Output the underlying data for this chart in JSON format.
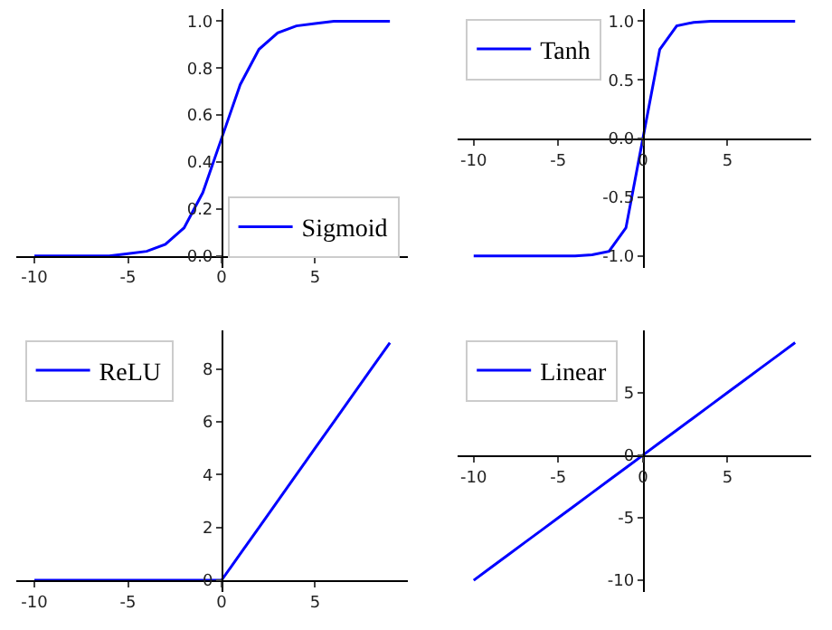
{
  "chart_data": [
    {
      "type": "line",
      "x": [
        -10,
        -9,
        -8,
        -7,
        -6,
        -5,
        -4,
        -3,
        -2,
        -1,
        0,
        1,
        2,
        3,
        4,
        5,
        6,
        7,
        8,
        9
      ],
      "xlim": [
        -10.95,
        9.95
      ],
      "ylim": [
        -0.05,
        1.05
      ],
      "xticks": [
        -10,
        -5,
        0,
        5
      ],
      "yticks": [
        {
          "value": 0,
          "label": "0.0"
        },
        0.2,
        0.4,
        0.6,
        0.8,
        {
          "value": 1,
          "label": "1.0"
        }
      ],
      "legend": "bottom right",
      "series": [
        {
          "name": "Sigmoid",
          "color": "#0000ff",
          "values": [
            0.0,
            0.0,
            0.0,
            0.0,
            0.0,
            0.01,
            0.02,
            0.05,
            0.12,
            0.27,
            0.5,
            0.73,
            0.88,
            0.95,
            0.98,
            0.99,
            1.0,
            1.0,
            1.0,
            1.0
          ]
        }
      ]
    },
    {
      "type": "line",
      "x": [
        -10,
        -9,
        -8,
        -7,
        -6,
        -5,
        -4,
        -3,
        -2,
        -1,
        0,
        1,
        2,
        3,
        4,
        5,
        6,
        7,
        8,
        9
      ],
      "xlim": [
        -10.95,
        9.95
      ],
      "ylim": [
        -1.1,
        1.1
      ],
      "xticks": [
        -10,
        -5,
        0,
        5
      ],
      "yticks": [
        {
          "value": -1,
          "label": "-1.0"
        },
        -0.5,
        {
          "value": 0,
          "label": "0.0"
        },
        0.5,
        {
          "value": 1,
          "label": "1.0"
        }
      ],
      "legend": "top left",
      "series": [
        {
          "name": "Tanh",
          "color": "#0000ff",
          "values": [
            -1.0,
            -1.0,
            -1.0,
            -1.0,
            -1.0,
            -1.0,
            -1.0,
            -0.99,
            -0.96,
            -0.76,
            0.0,
            0.76,
            0.96,
            0.99,
            1.0,
            1.0,
            1.0,
            1.0,
            1.0,
            1.0
          ]
        }
      ]
    },
    {
      "type": "line",
      "x": [
        -10,
        -9,
        -8,
        -7,
        -6,
        -5,
        -4,
        -3,
        -2,
        -1,
        0,
        1,
        2,
        3,
        4,
        5,
        6,
        7,
        8,
        9
      ],
      "xlim": [
        -10.95,
        9.95
      ],
      "ylim": [
        -0.45,
        9.45
      ],
      "xticks": [
        -10,
        -5,
        0,
        5
      ],
      "yticks": [
        0,
        2,
        4,
        6,
        8
      ],
      "legend": "top left",
      "series": [
        {
          "name": "ReLU",
          "color": "#0000ff",
          "values": [
            0,
            0,
            0,
            0,
            0,
            0,
            0,
            0,
            0,
            0,
            0,
            1,
            2,
            3,
            4,
            5,
            6,
            7,
            8,
            9
          ]
        }
      ]
    },
    {
      "type": "line",
      "x": [
        -10,
        -9,
        -8,
        -7,
        -6,
        -5,
        -4,
        -3,
        -2,
        -1,
        0,
        1,
        2,
        3,
        4,
        5,
        6,
        7,
        8,
        9
      ],
      "xlim": [
        -10.95,
        9.95
      ],
      "ylim": [
        -10.95,
        9.95
      ],
      "xticks": [
        -10,
        -5,
        0,
        5
      ],
      "yticks": [
        -10,
        -5,
        0,
        5
      ],
      "legend": "top left",
      "series": [
        {
          "name": "Linear",
          "color": "#0000ff",
          "values": [
            -10,
            -9,
            -8,
            -7,
            -6,
            -5,
            -4,
            -3,
            -2,
            -1,
            0,
            1,
            2,
            3,
            4,
            5,
            6,
            7,
            8,
            9
          ]
        }
      ]
    }
  ]
}
